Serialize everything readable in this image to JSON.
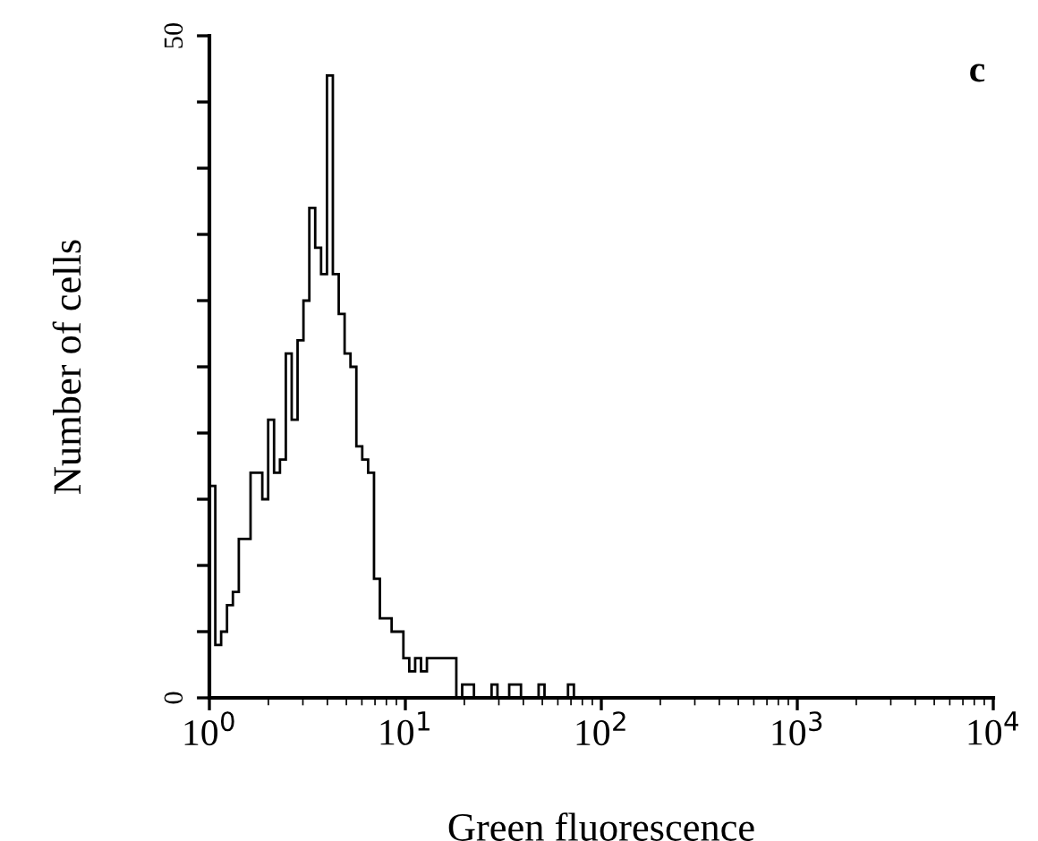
{
  "chart_data": {
    "type": "histogram",
    "xlabel": "Green fluorescence",
    "ylabel": "Number of cells",
    "annotations": [
      "c"
    ],
    "log": "x",
    "color": "#000000",
    "grid": false,
    "bins": [
      1,
      1.072,
      1.148,
      1.23,
      1.318,
      1.413,
      1.514,
      1.622,
      1.738,
      1.862,
      1.995,
      2.138,
      2.291,
      2.455,
      2.63,
      2.818,
      3.02,
      3.236,
      3.467,
      3.715,
      3.981,
      4.266,
      4.571,
      4.898,
      5.248,
      5.623,
      6.026,
      6.457,
      6.918,
      7.413,
      7.943,
      8.511,
      9.12,
      9.772,
      10.47,
      11.22,
      12.02,
      12.88,
      13.8,
      14.79,
      15.85,
      16.98,
      18.2,
      19.5,
      20.89,
      22.39,
      23.99,
      25.7,
      27.54,
      29.51,
      31.62,
      33.88,
      36.31,
      38.9,
      41.69,
      44.67,
      47.86,
      51.29,
      54.95,
      58.88,
      63.1,
      67.61,
      72.44,
      77.62,
      83.18,
      89.13,
      95.5
    ],
    "values": [
      16,
      4,
      5,
      7,
      8,
      12,
      12,
      17,
      17,
      15,
      21,
      17,
      18,
      26,
      21,
      27,
      30,
      37,
      34,
      32,
      47,
      32,
      29,
      26,
      25,
      19,
      18,
      17,
      9,
      6,
      6,
      5,
      5,
      3,
      2,
      3,
      2,
      3,
      3,
      3,
      3,
      3,
      0,
      1,
      1,
      0,
      0,
      0,
      1,
      0,
      0,
      1,
      1,
      0,
      0,
      0,
      1,
      0,
      0,
      0,
      0,
      1,
      0,
      0,
      0,
      0
    ],
    "xlim": [
      1,
      10000
    ],
    "xticks": [
      {
        "value": 1,
        "label": "10$^{0}$"
      },
      {
        "value": 10,
        "label": "10$^{1}$"
      },
      {
        "value": 100,
        "label": "10$^{2}$"
      },
      {
        "value": 1000,
        "label": "10$^{3}$"
      },
      {
        "value": 10000,
        "label": "10$^{4}$"
      }
    ],
    "ylim": [
      0,
      50
    ],
    "yticks": [
      0,
      {
        "value": 5,
        "label": null
      },
      {
        "value": 10,
        "label": null
      },
      {
        "value": 15,
        "label": null
      },
      {
        "value": 20,
        "label": null
      },
      {
        "value": 25,
        "label": null
      },
      {
        "value": 30,
        "label": null
      },
      {
        "value": 35,
        "label": null
      },
      {
        "value": 40,
        "label": null
      },
      {
        "value": 45,
        "label": null
      },
      50
    ]
  }
}
